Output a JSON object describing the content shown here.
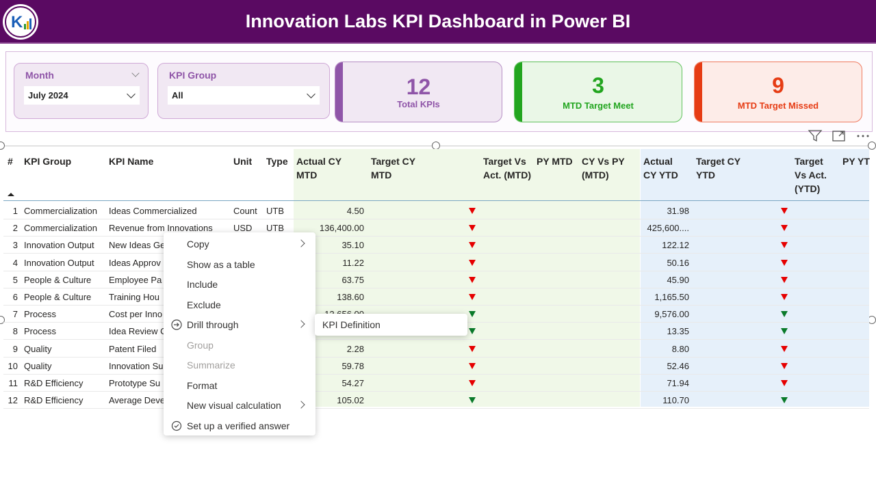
{
  "header": {
    "title": "Innovation Labs KPI Dashboard in Power BI"
  },
  "filters": {
    "month": {
      "title": "Month",
      "value": "July 2024"
    },
    "kpi_group": {
      "title": "KPI Group",
      "value": "All"
    }
  },
  "cards": [
    {
      "value": "12",
      "label": "Total KPIs",
      "color": "#8f55a8"
    },
    {
      "value": "3",
      "label": "MTD Target Meet",
      "color": "#22a51f"
    },
    {
      "value": "9",
      "label": "MTD Target Missed",
      "color": "#e63c14"
    }
  ],
  "table": {
    "columns": {
      "idx": "#",
      "group": "KPI Group",
      "name": "KPI Name",
      "unit": "Unit",
      "type": "Type",
      "actual_mtd": "Actual CY MTD",
      "target_mtd": "Target CY MTD",
      "tva_mtd": "Target Vs Act. (MTD)",
      "py_mtd": "PY MTD",
      "cvp_mtd": "CY Vs PY (MTD)",
      "actual_ytd": "Actual CY YTD",
      "target_ytd": "Target CY YTD",
      "tva_ytd": "Target Vs Act. (YTD)",
      "py_ytd": "PY YT"
    },
    "rows": [
      {
        "i": "1",
        "group": "Commercialization",
        "name": "Ideas Commercialized",
        "unit": "Count",
        "type": "UTB",
        "actual_mtd": "4.50",
        "mtd_status": "down",
        "actual_ytd": "31.98",
        "ytd_status": "down"
      },
      {
        "i": "2",
        "group": "Commercialization",
        "name": "Revenue from Innovations",
        "unit": "USD",
        "type": "UTB",
        "actual_mtd": "136,400.00",
        "mtd_status": "down",
        "actual_ytd": "425,600....",
        "ytd_status": "down"
      },
      {
        "i": "3",
        "group": "Innovation Output",
        "name": "New Ideas Ge",
        "unit": "",
        "type": "",
        "actual_mtd": "35.10",
        "mtd_status": "down",
        "actual_ytd": "122.12",
        "ytd_status": "down"
      },
      {
        "i": "4",
        "group": "Innovation Output",
        "name": "Ideas Approv",
        "unit": "",
        "type": "",
        "actual_mtd": "11.22",
        "mtd_status": "down",
        "actual_ytd": "50.16",
        "ytd_status": "down"
      },
      {
        "i": "5",
        "group": "People & Culture",
        "name": "Employee Pa",
        "unit": "",
        "type": "",
        "actual_mtd": "63.75",
        "mtd_status": "down",
        "actual_ytd": "45.90",
        "ytd_status": "down"
      },
      {
        "i": "6",
        "group": "People & Culture",
        "name": "Training Hou",
        "unit": "",
        "type": "",
        "actual_mtd": "138.60",
        "mtd_status": "down",
        "actual_ytd": "1,165.50",
        "ytd_status": "down"
      },
      {
        "i": "7",
        "group": "Process",
        "name": "Cost per Inno",
        "unit": "",
        "type": "",
        "actual_mtd": "12,656.00",
        "mtd_status": "up",
        "actual_ytd": "9,576.00",
        "ytd_status": "up"
      },
      {
        "i": "8",
        "group": "Process",
        "name": "Idea Review C",
        "unit": "",
        "type": "",
        "actual_mtd": "",
        "mtd_status": "up",
        "actual_ytd": "13.35",
        "ytd_status": "up"
      },
      {
        "i": "9",
        "group": "Quality",
        "name": "Patent Filed",
        "unit": "",
        "type": "",
        "actual_mtd": "2.28",
        "mtd_status": "down",
        "actual_ytd": "8.80",
        "ytd_status": "down"
      },
      {
        "i": "10",
        "group": "Quality",
        "name": "Innovation Su",
        "unit": "",
        "type": "",
        "actual_mtd": "59.78",
        "mtd_status": "down",
        "actual_ytd": "52.46",
        "ytd_status": "down"
      },
      {
        "i": "11",
        "group": "R&D Efficiency",
        "name": "Prototype Su",
        "unit": "",
        "type": "",
        "actual_mtd": "54.27",
        "mtd_status": "down",
        "actual_ytd": "71.94",
        "ytd_status": "down"
      },
      {
        "i": "12",
        "group": "R&D Efficiency",
        "name": "Average Deve",
        "unit": "",
        "type": "",
        "actual_mtd": "105.02",
        "mtd_status": "up",
        "actual_ytd": "110.70",
        "ytd_status": "up"
      }
    ]
  },
  "context_menu": {
    "items": [
      {
        "label": "Copy",
        "submenu": true,
        "disabled": false,
        "icon": ""
      },
      {
        "label": "Show as a table",
        "submenu": false,
        "disabled": false,
        "icon": ""
      },
      {
        "label": "Include",
        "submenu": false,
        "disabled": false,
        "icon": ""
      },
      {
        "label": "Exclude",
        "submenu": false,
        "disabled": false,
        "icon": ""
      },
      {
        "label": "Drill through",
        "submenu": true,
        "disabled": false,
        "icon": "drill-through-icon"
      },
      {
        "label": "Group",
        "submenu": false,
        "disabled": true,
        "icon": ""
      },
      {
        "label": "Summarize",
        "submenu": false,
        "disabled": true,
        "icon": ""
      },
      {
        "label": "Format",
        "submenu": false,
        "disabled": false,
        "icon": ""
      },
      {
        "label": "New visual calculation",
        "submenu": true,
        "disabled": false,
        "icon": ""
      },
      {
        "label": "Set up a verified answer",
        "submenu": false,
        "disabled": false,
        "icon": "verified-answer-icon"
      }
    ],
    "submenu": {
      "label": "KPI Definition"
    }
  },
  "colors": {
    "header_bg": "#5a0a62",
    "mtd_bg": "#f0f8e8",
    "ytd_bg": "#e6f0fa",
    "down": "#e60000",
    "up": "#0a7a2a"
  }
}
